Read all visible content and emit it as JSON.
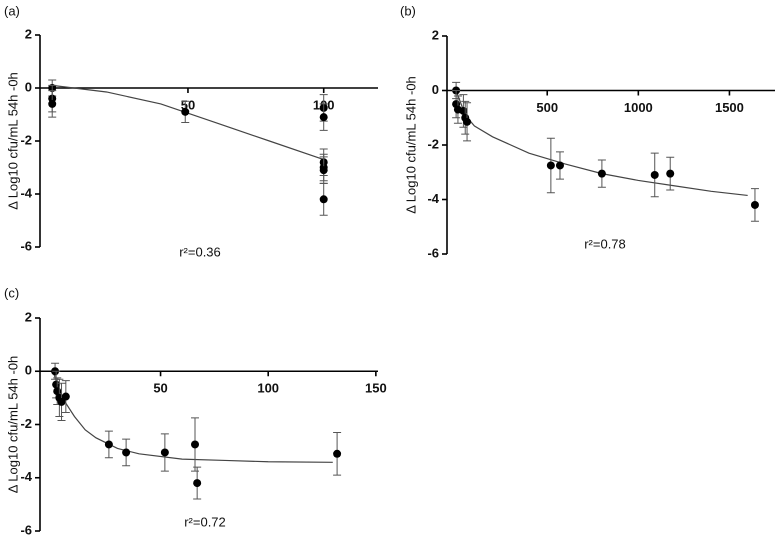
{
  "chart_data": [
    {
      "type": "scatter",
      "panel_label": "(a)",
      "ylabel": "Δ Log10 cfu/mL 54h -0h",
      "annotation": "r²=0.36",
      "xlim": [
        -4.5,
        120
      ],
      "ylim": [
        -6,
        2
      ],
      "xticks": [
        50,
        100
      ],
      "yticks": [
        -6,
        -4,
        -2,
        0,
        2
      ],
      "color": "#000000",
      "fit_color": "#444444",
      "series": [
        {
          "x": [
            0,
            0,
            0,
            49,
            100,
            100,
            100,
            100,
            100,
            100
          ],
          "values": [
            0,
            -0.4,
            -0.6,
            -0.9,
            -0.75,
            -1.1,
            -2.8,
            -3.0,
            -3.1,
            -4.2
          ],
          "errors": [
            0.3,
            0.5,
            0.5,
            0.4,
            0.5,
            0.5,
            0.5,
            0.5,
            0.5,
            0.6
          ]
        }
      ],
      "fit": {
        "x": [
          0,
          20,
          40,
          60,
          80,
          100
        ],
        "values": [
          0.1,
          -0.15,
          -0.6,
          -1.3,
          -2.0,
          -2.7
        ]
      }
    },
    {
      "type": "scatter",
      "panel_label": "(b)",
      "ylabel": "Δ Log10 cfu/mL 54h -0h",
      "annotation": "r²=0.78",
      "xlim": [
        -50,
        1750
      ],
      "ylim": [
        -6,
        2
      ],
      "xticks": [
        500,
        1000,
        1500
      ],
      "yticks": [
        -6,
        -4,
        -2,
        0,
        2
      ],
      "color": "#000000",
      "fit_color": "#444444",
      "series": [
        {
          "x": [
            0,
            0,
            10,
            40,
            50,
            60,
            520,
            570,
            800,
            1090,
            1175,
            1640
          ],
          "values": [
            0,
            -0.5,
            -0.7,
            -0.75,
            -1.0,
            -1.15,
            -2.75,
            -2.75,
            -3.05,
            -3.1,
            -3.05,
            -4.2
          ],
          "errors": [
            0.3,
            0.5,
            0.5,
            0.6,
            0.6,
            0.7,
            1.0,
            0.5,
            0.5,
            0.8,
            0.6,
            0.6
          ]
        }
      ],
      "fit": {
        "x": [
          0,
          50,
          100,
          200,
          400,
          600,
          800,
          1000,
          1200,
          1400,
          1600
        ],
        "values": [
          0,
          -0.9,
          -1.3,
          -1.7,
          -2.3,
          -2.7,
          -3.05,
          -3.3,
          -3.5,
          -3.7,
          -3.85
        ]
      }
    },
    {
      "type": "scatter",
      "panel_label": "(c)",
      "ylabel": "Δ Log10 cfu/mL 54h -0h",
      "annotation": "r²=0.72",
      "xlim": [
        -6,
        151
      ],
      "ylim": [
        -6,
        2
      ],
      "xticks": [
        50,
        100,
        150
      ],
      "yticks": [
        -6,
        -4,
        -2,
        0,
        2
      ],
      "color": "#000000",
      "fit_color": "#444444",
      "series": [
        {
          "x": [
            1,
            1.5,
            2,
            3,
            4,
            6,
            26,
            34,
            52,
            66,
            67,
            132
          ],
          "values": [
            0,
            -0.5,
            -0.75,
            -1.0,
            -1.15,
            -0.95,
            -2.75,
            -3.05,
            -3.05,
            -2.75,
            -4.2,
            -3.1
          ],
          "errors": [
            0.3,
            0.5,
            0.5,
            0.7,
            0.7,
            0.6,
            0.5,
            0.5,
            0.7,
            1.0,
            0.6,
            0.8
          ]
        }
      ],
      "fit": {
        "x": [
          0,
          3,
          6,
          10,
          15,
          20,
          30,
          40,
          60,
          80,
          100,
          130
        ],
        "values": [
          0,
          -0.7,
          -1.2,
          -1.7,
          -2.2,
          -2.5,
          -2.9,
          -3.1,
          -3.3,
          -3.35,
          -3.4,
          -3.42
        ]
      }
    }
  ]
}
